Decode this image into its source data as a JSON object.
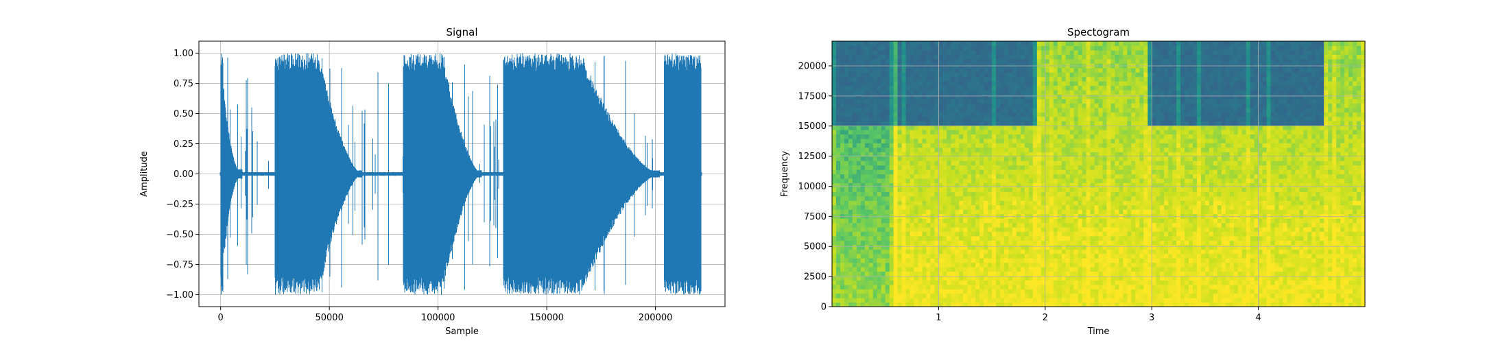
{
  "chart_data": [
    {
      "type": "line",
      "title": "Signal",
      "xlabel": "Sample",
      "ylabel": "Amplitude",
      "xlim": [
        -10000,
        232000
      ],
      "ylim": [
        -1.1,
        1.1
      ],
      "xticks": [
        0,
        50000,
        100000,
        150000,
        200000
      ],
      "xtick_labels": [
        "0",
        "50000",
        "100000",
        "150000",
        "200000"
      ],
      "yticks": [
        -1.0,
        -0.75,
        -0.5,
        -0.25,
        0.0,
        0.25,
        0.5,
        0.75,
        1.0
      ],
      "ytick_labels": [
        "−1.00",
        "−0.75",
        "−0.50",
        "−0.25",
        "0.00",
        "0.25",
        "0.50",
        "0.75",
        "1.00"
      ],
      "grid": true,
      "color": "#1f77b4",
      "envelope_segments": [
        {
          "start": 0,
          "end": 10000,
          "peak": 1.0,
          "decay": "fast"
        },
        {
          "start": 25000,
          "end": 65000,
          "peak": 1.0,
          "decay": "slow"
        },
        {
          "start": 84000,
          "end": 120000,
          "peak": 1.0,
          "decay": "slow"
        },
        {
          "start": 130000,
          "end": 202000,
          "peak": 1.0,
          "decay": "slow"
        },
        {
          "start": 204000,
          "end": 221000,
          "peak": 1.0,
          "decay": "none"
        }
      ]
    },
    {
      "type": "heatmap",
      "title": "Spectogram",
      "xlabel": "Time",
      "ylabel": "Frequency",
      "xlim": [
        0,
        5.0
      ],
      "ylim": [
        0,
        22050
      ],
      "xticks": [
        1,
        2,
        3,
        4
      ],
      "xtick_labels": [
        "1",
        "2",
        "3",
        "4"
      ],
      "yticks": [
        0,
        2500,
        5000,
        7500,
        10000,
        12500,
        15000,
        17500,
        20000
      ],
      "ytick_labels": [
        "0",
        "2500",
        "5000",
        "7500",
        "10000",
        "12500",
        "15000",
        "17500",
        "20000"
      ],
      "grid": true,
      "colormap": [
        "#3b528b",
        "#21918c",
        "#5ec962",
        "#c8e020",
        "#fde725"
      ],
      "segments": [
        {
          "start": 0.0,
          "end": 0.57,
          "intensity": "medium",
          "cutoff_hz": 15000
        },
        {
          "start": 0.57,
          "end": 1.92,
          "intensity": "high",
          "cutoff_hz": 15000
        },
        {
          "start": 1.92,
          "end": 2.97,
          "intensity": "high",
          "cutoff_hz": 22050
        },
        {
          "start": 2.97,
          "end": 4.63,
          "intensity": "high",
          "cutoff_hz": 15000
        },
        {
          "start": 4.63,
          "end": 5.0,
          "intensity": "high",
          "cutoff_hz": 22050
        }
      ]
    }
  ]
}
